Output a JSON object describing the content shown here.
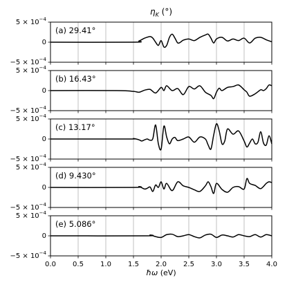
{
  "chart_data": {
    "type": "line",
    "title": "η_K (°)",
    "xlabel": "ħω (eV)",
    "ylabel": "",
    "xlim": [
      0.0,
      4.0
    ],
    "ylim": [
      -0.0005,
      0.0005
    ],
    "xticks": [
      "0.0",
      "0.5",
      "1.0",
      "1.5",
      "2.0",
      "2.5",
      "3.0",
      "3.5",
      "4.0"
    ],
    "yticks": [
      "5 × 10⁻⁴",
      "0",
      "−5 × 10⁻⁴"
    ],
    "grid": "vertical",
    "line_color": "#000000",
    "grid_color": "#b0b0b0",
    "panels": [
      {
        "label": "(a) 29.41°",
        "x": [
          0.0,
          1.5,
          1.6,
          1.7,
          1.8,
          1.85,
          1.9,
          1.95,
          2.0,
          2.05,
          2.1,
          2.15,
          2.2,
          2.25,
          2.3,
          2.35,
          2.4,
          2.5,
          2.6,
          2.7,
          2.8,
          2.85,
          2.9,
          2.95,
          3.0,
          3.1,
          3.2,
          3.3,
          3.4,
          3.5,
          3.6,
          3.7,
          3.8,
          3.9,
          4.0
        ],
        "y": [
          0.0,
          0.0,
          3e-05,
          0.0001,
          0.00014,
          0.0001,
          0.0,
          -8e-05,
          4e-05,
          -0.00012,
          -8e-05,
          0.00012,
          0.0002,
          0.0001,
          -2e-05,
          0.0,
          5e-05,
          8e-05,
          4e-05,
          0.00012,
          0.00018,
          0.0002,
          0.0001,
          -2e-05,
          8e-05,
          0.00012,
          3e-05,
          8e-05,
          4e-05,
          0.0001,
          -2e-05,
          0.0001,
          0.00012,
          6e-05,
          1e-05
        ]
      },
      {
        "label": "(b) 16.43°",
        "x": [
          0.0,
          1.2,
          1.5,
          1.6,
          1.7,
          1.8,
          1.9,
          2.0,
          2.05,
          2.1,
          2.2,
          2.3,
          2.4,
          2.5,
          2.6,
          2.7,
          2.8,
          2.9,
          2.95,
          3.0,
          3.05,
          3.1,
          3.2,
          3.3,
          3.4,
          3.5,
          3.55,
          3.6,
          3.7,
          3.8,
          3.85,
          3.9,
          3.95,
          4.0
        ],
        "y": [
          0.0,
          0.0,
          -2e-05,
          -4e-05,
          1e-05,
          3e-05,
          -6e-05,
          8e-05,
          0.0,
          0.00012,
          0.0,
          5e-05,
          -0.0001,
          0.0001,
          4e-05,
          0.00012,
          -4e-05,
          -0.00012,
          -0.0002,
          -4e-05,
          6e-05,
          0.0,
          8e-05,
          0.0001,
          0.00014,
          2e-05,
          -4e-05,
          -0.00014,
          -8e-05,
          2e-05,
          0.0,
          5e-05,
          0.00014,
          0.00012
        ]
      },
      {
        "label": "(c) 13.17°",
        "x": [
          0.0,
          1.4,
          1.5,
          1.6,
          1.65,
          1.7,
          1.75,
          1.8,
          1.85,
          1.9,
          1.95,
          2.0,
          2.05,
          2.1,
          2.15,
          2.2,
          2.25,
          2.3,
          2.4,
          2.5,
          2.6,
          2.7,
          2.8,
          2.85,
          2.9,
          2.95,
          3.0,
          3.05,
          3.1,
          3.15,
          3.2,
          3.3,
          3.4,
          3.5,
          3.55,
          3.6,
          3.65,
          3.7,
          3.75,
          3.8,
          3.85,
          3.9,
          3.95,
          4.0
        ],
        "y": [
          0.0,
          0.0,
          1e-05,
          -2e-05,
          -5e-05,
          -2e-05,
          0.0,
          -3e-05,
          1e-05,
          0.00035,
          -0.00012,
          -0.00025,
          0.00032,
          5e-05,
          -0.00012,
          0.0,
          4e-05,
          -4e-05,
          0.0,
          5e-05,
          -8e-05,
          5e-05,
          0.0,
          -0.00015,
          -0.00025,
          0.0001,
          0.00038,
          0.0002,
          -0.00012,
          -5e-05,
          0.00025,
          0.00012,
          0.0002,
          -5e-05,
          -0.0002,
          -0.0001,
          0.0,
          -0.00012,
          -8e-05,
          0.00018,
          -0.0001,
          -0.00015,
          8e-05,
          -0.00012
        ]
      },
      {
        "label": "(d) 9.430°",
        "x": [
          0.0,
          1.5,
          1.6,
          1.7,
          1.75,
          1.8,
          1.85,
          1.9,
          1.95,
          2.0,
          2.05,
          2.1,
          2.2,
          2.3,
          2.4,
          2.5,
          2.6,
          2.7,
          2.8,
          2.85,
          2.9,
          2.95,
          3.0,
          3.1,
          3.2,
          3.3,
          3.4,
          3.5,
          3.55,
          3.6,
          3.7,
          3.8,
          3.9,
          3.95,
          4.0
        ],
        "y": [
          0.0,
          0.0,
          2e-05,
          -4e-05,
          -2e-05,
          1e-05,
          -0.0001,
          6e-05,
          0.0,
          0.00014,
          -4e-05,
          0.0001,
          -8e-05,
          0.00014,
          4e-05,
          0.0,
          -6e-05,
          -0.0001,
          4e-05,
          0.00014,
          2e-05,
          -0.00015,
          0.0001,
          -5e-05,
          -0.00012,
          0.0,
          2e-05,
          -4e-05,
          0.00022,
          0.0001,
          5e-05,
          -3e-05,
          0.0001,
          0.00014,
          0.00012
        ]
      },
      {
        "label": "(e) 5.086°",
        "x": [
          0.0,
          1.7,
          1.8,
          1.9,
          2.0,
          2.1,
          2.2,
          2.3,
          2.4,
          2.5,
          2.6,
          2.7,
          2.8,
          2.9,
          3.0,
          3.1,
          3.2,
          3.3,
          3.4,
          3.5,
          3.6,
          3.7,
          3.8,
          3.9,
          4.0
        ],
        "y": [
          0.0,
          0.0,
          2e-05,
          -2e-05,
          -4e-05,
          3e-05,
          4e-05,
          -2e-05,
          0.0,
          3e-05,
          -2e-05,
          -5e-05,
          2e-05,
          4e-05,
          -4e-05,
          2e-05,
          0.0,
          -3e-05,
          3e-05,
          0.0,
          -2e-05,
          3e-05,
          -3e-05,
          3e-05,
          0.0
        ]
      }
    ]
  }
}
